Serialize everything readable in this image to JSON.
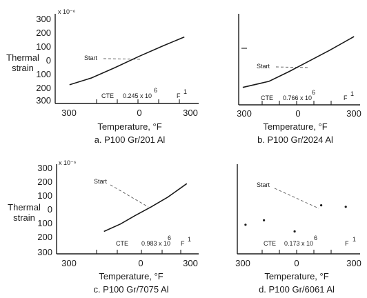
{
  "chart_data": [
    {
      "panel": "a",
      "type": "line",
      "caption": "a. P100 Gr/201 Al",
      "xlabel": "Temperature, °F",
      "ylabel": "Thermal strain",
      "y_exponent_label": "x 10⁻⁶",
      "xlim": [
        -300,
        300
      ],
      "ylim": [
        -300,
        300
      ],
      "x_ticks": [
        "300",
        "0",
        "300"
      ],
      "y_ticks": [
        "300",
        "200",
        "100",
        "0",
        "100",
        "200",
        "300"
      ],
      "start_label": "Start",
      "cte_text": [
        "CTE",
        "0.245 x 10",
        "6",
        "F",
        "1"
      ],
      "series": [
        {
          "x": [
            -240,
            -150,
            -50,
            50,
            150,
            240
          ],
          "y": [
            -175,
            -130,
            -60,
            15,
            85,
            145
          ]
        }
      ]
    },
    {
      "panel": "b",
      "type": "line",
      "caption": "b. P100 Gr/2024 Al",
      "xlabel": "Temperature, °F",
      "xlim": [
        -300,
        300
      ],
      "ylim": [
        -300,
        300
      ],
      "x_ticks": [
        "300",
        "0",
        "300"
      ],
      "start_label": "Start",
      "cte_text": [
        "CTE",
        "0.766 x 10",
        "6",
        "F",
        "1"
      ],
      "series": [
        {
          "x": [
            -280,
            -150,
            -50,
            50,
            150,
            270
          ],
          "y": [
            -185,
            -145,
            -80,
            -10,
            60,
            150
          ]
        }
      ]
    },
    {
      "panel": "c",
      "type": "line",
      "caption": "c. P100 Gr/7075 Al",
      "xlabel": "Temperature, °F",
      "ylabel": "Thermal strain",
      "y_exponent_label": "x 10⁻⁶",
      "xlim": [
        -300,
        300
      ],
      "ylim": [
        -300,
        300
      ],
      "x_ticks": [
        "300",
        "0",
        "300"
      ],
      "y_ticks": [
        "300",
        "200",
        "100",
        "0",
        "100",
        "200",
        "300"
      ],
      "start_label": "Start",
      "cte_text": [
        "CTE",
        "0.983 x 10",
        "6",
        "F",
        "1"
      ],
      "series": [
        {
          "x": [
            -100,
            -30,
            30,
            100,
            170,
            250
          ],
          "y": [
            -150,
            -100,
            -45,
            15,
            80,
            170
          ]
        }
      ]
    },
    {
      "panel": "d",
      "type": "scatter",
      "caption": "d. P100 Gr/6061 Al",
      "xlabel": "Temperature, °F",
      "xlim": [
        -300,
        300
      ],
      "ylim": [
        -300,
        300
      ],
      "x_ticks": [
        "300",
        "0",
        "300"
      ],
      "start_label": "Start",
      "cte_text": [
        "CTE",
        "0.173 x 10",
        "6",
        "F",
        "1"
      ],
      "series": [
        {
          "x": [
            -260,
            -170,
            -20,
            110,
            230
          ],
          "y": [
            -105,
            -75,
            -150,
            25,
            15
          ]
        }
      ]
    }
  ]
}
